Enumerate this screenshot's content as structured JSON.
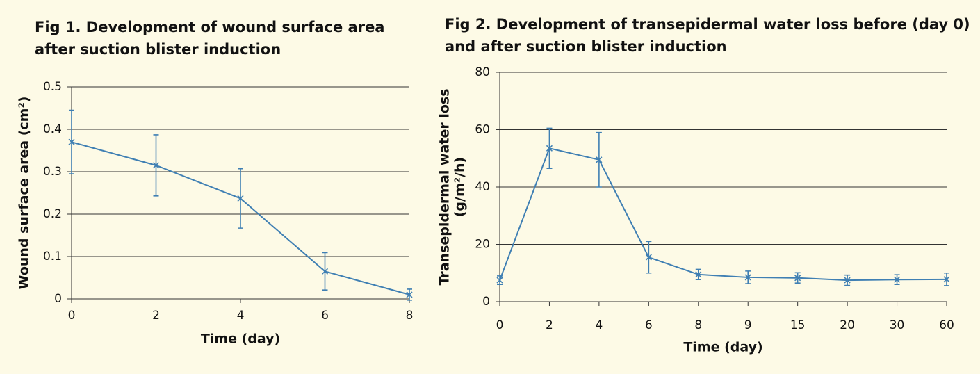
{
  "chart_data": [
    {
      "type": "line",
      "title": [
        "Fig 1. Development of wound surface area",
        "after suction blister induction"
      ],
      "xlabel": "Time (day)",
      "ylabel": [
        "Wound surface area (cm²)"
      ],
      "x": [
        0,
        2,
        4,
        6,
        8
      ],
      "xlim": [
        0,
        8
      ],
      "xticks": [
        0,
        2,
        4,
        6,
        8
      ],
      "values": [
        0.37,
        0.315,
        0.237,
        0.065,
        0.01
      ],
      "errors": [
        0.075,
        0.072,
        0.07,
        0.044,
        0.013
      ],
      "color": "#3f7fb3",
      "ylim": [
        0,
        0.5
      ],
      "yticks": [
        0,
        0.1,
        0.2,
        0.3,
        0.4,
        0.5
      ],
      "grid": true
    },
    {
      "type": "line",
      "title": [
        "Fig 2. Development of transepidermal water loss before (day 0)",
        "and after suction blister induction"
      ],
      "xlabel": "Time (day)",
      "ylabel": [
        "Transepidermal water loss",
        "(g/m²/h)"
      ],
      "categories": [
        "0",
        "2",
        "4",
        "6",
        "8",
        "9",
        "15",
        "20",
        "30",
        "60"
      ],
      "values": [
        7.5,
        53.5,
        49.5,
        15.5,
        9.5,
        8.5,
        8.3,
        7.5,
        7.7,
        7.8
      ],
      "errors": [
        1.5,
        7,
        9.5,
        5.5,
        1.8,
        2.2,
        1.8,
        1.8,
        1.7,
        2.2
      ],
      "color": "#3f7fb3",
      "ylim": [
        0,
        80
      ],
      "yticks": [
        0,
        20,
        40,
        60,
        80
      ],
      "grid": true
    }
  ]
}
